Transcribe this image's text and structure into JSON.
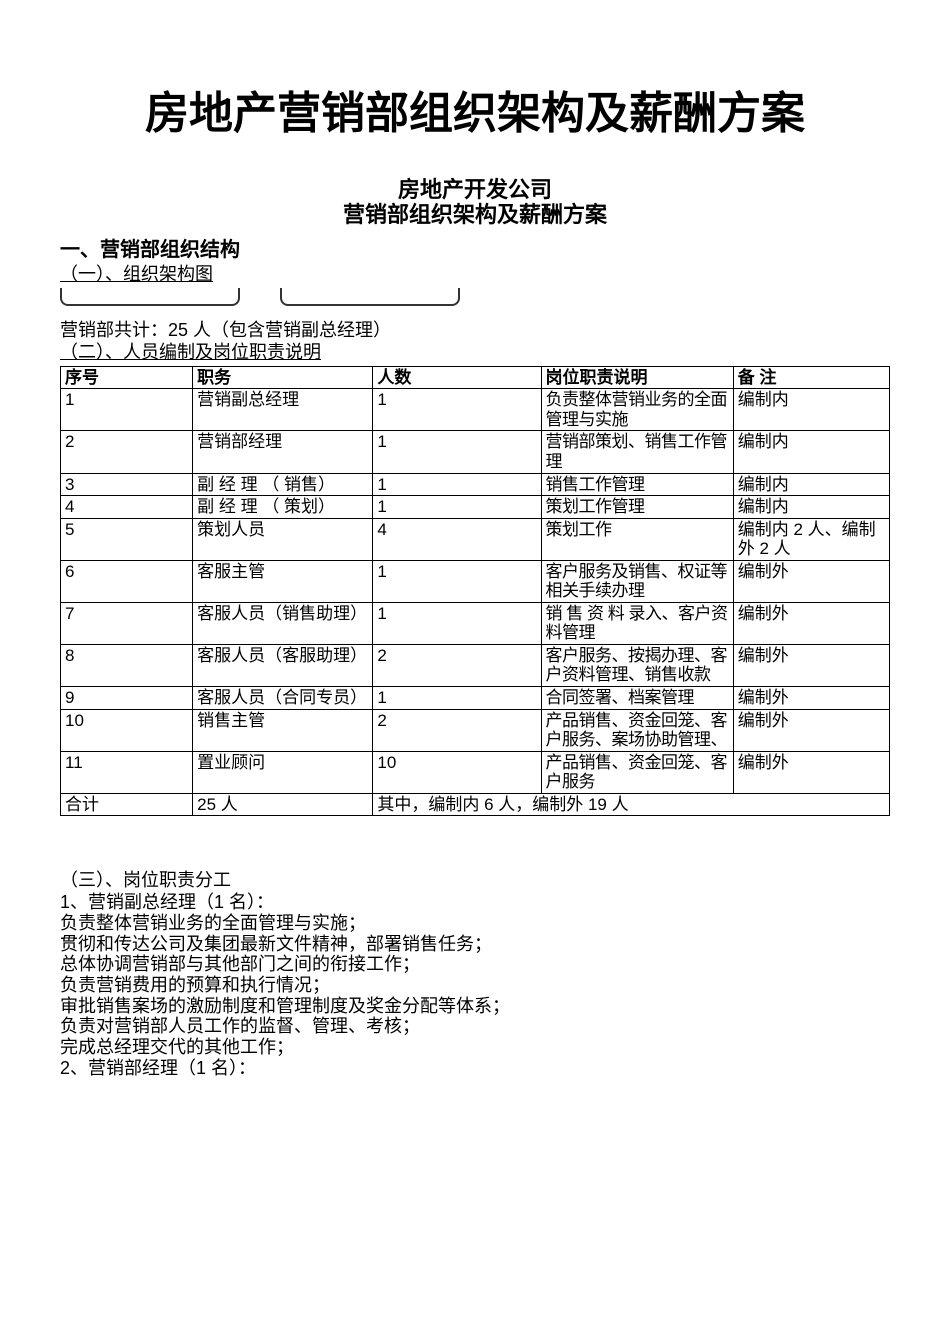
{
  "mainTitle": "房地产营销部组织架构及薪酬方案",
  "subtitle1": "房地产开发公司",
  "subtitle2": "营销部组织架构及薪酬方案",
  "section1Heading": "一、营销部组织结构",
  "subSection1": "（一）、组织架构图",
  "totalText": "营销部共计：25 人（包含营销副总经理）",
  "subSection2": "（二）、人员编制及岗位职责说明",
  "tableHeaders": {
    "seq": "序号",
    "position": "职务",
    "count": "人数",
    "description": "岗位职责说明",
    "note": "备 注"
  },
  "tableRows": [
    {
      "seq": "1",
      "position": "营销副总经理",
      "count": "1",
      "description": "负责整体营销业务的全面管理与实施",
      "note": "编制内"
    },
    {
      "seq": "2",
      "position": "营销部经理",
      "count": "1",
      "description": "营销部策划、销售工作管理",
      "note": "编制内"
    },
    {
      "seq": "3",
      "position": "副 经 理 （ 销售）",
      "count": "1",
      "description": "销售工作管理",
      "note": "编制内"
    },
    {
      "seq": "4",
      "position": "副 经 理 （ 策划）",
      "count": "1",
      "description": "策划工作管理",
      "note": "编制内"
    },
    {
      "seq": "5",
      "position": "策划人员",
      "count": "4",
      "description": "策划工作",
      "note": "编制内 2 人、编制外 2 人"
    },
    {
      "seq": "6",
      "position": "客服主管",
      "count": "1",
      "description": "客户服务及销售、权证等相关手续办理",
      "note": "编制外"
    },
    {
      "seq": "7",
      "position": "客服人员（销售助理）",
      "count": "1",
      "description": "销 售 资 料 录入、客户资料管理",
      "note": "编制外"
    },
    {
      "seq": "8",
      "position": "客服人员（客服助理）",
      "count": "2",
      "description": "客户服务、按揭办理、客户资料管理、销售收款",
      "note": "编制外"
    },
    {
      "seq": "9",
      "position": "客服人员（合同专员）",
      "count": "1",
      "description": "合同签署、档案管理",
      "note": "编制外"
    },
    {
      "seq": "10",
      "position": "销售主管",
      "count": "2",
      "description": "产品销售、资金回笼、客户服务、案场协助管理、",
      "note": "编制外"
    },
    {
      "seq": "11",
      "position": "置业顾问",
      "count": "10",
      "description": "产品销售、资金回笼、客户服务",
      "note": "编制外"
    }
  ],
  "tableFooter": {
    "label": "合计",
    "total": "25 人",
    "summary": "其中，编制内 6 人，编制外 19 人"
  },
  "section3Heading": "（三）、岗位职责分工",
  "duties": {
    "role1Title": "1、营销副总经理（1 名）：",
    "role1Lines": [
      "负责整体营销业务的全面管理与实施；",
      "贯彻和传达公司及集团最新文件精神，部署销售任务；",
      "总体协调营销部与其他部门之间的衔接工作；",
      "负责营销费用的预算和执行情况；",
      "审批销售案场的激励制度和管理制度及奖金分配等体系；",
      "负责对营销部人员工作的监督、管理、考核；",
      "完成总经理交代的其他工作；"
    ],
    "role2Title": "2、营销部经理（1 名）："
  }
}
